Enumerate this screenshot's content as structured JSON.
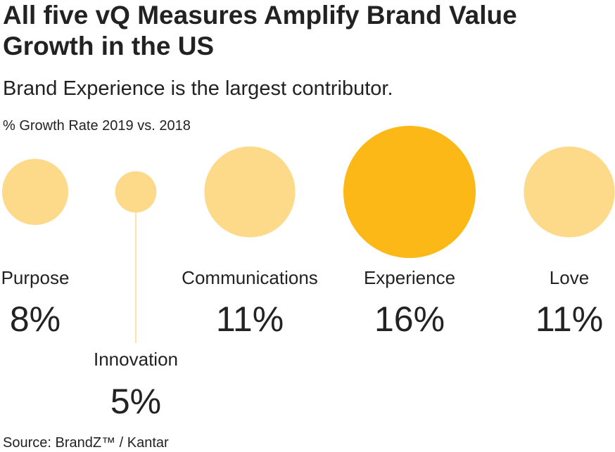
{
  "chart_data": {
    "type": "bubble",
    "title": "All five vQ Measures Amplify Brand Value Growth in the US",
    "subtitle": "Brand Experience is the largest contributor.",
    "value_axis_label": "% Growth Rate 2019 vs. 2018",
    "categories": [
      "Purpose",
      "Innovation",
      "Communications",
      "Experience",
      "Love"
    ],
    "values": [
      8,
      5,
      11,
      16,
      11
    ],
    "value_labels": [
      "8%",
      "5%",
      "11%",
      "16%",
      "11%"
    ],
    "colors": [
      "#fdd98a",
      "#fdd98a",
      "#fdd98a",
      "#fbb817",
      "#fdd98a"
    ],
    "source": "Source: BrandZ™ / Kantar"
  }
}
